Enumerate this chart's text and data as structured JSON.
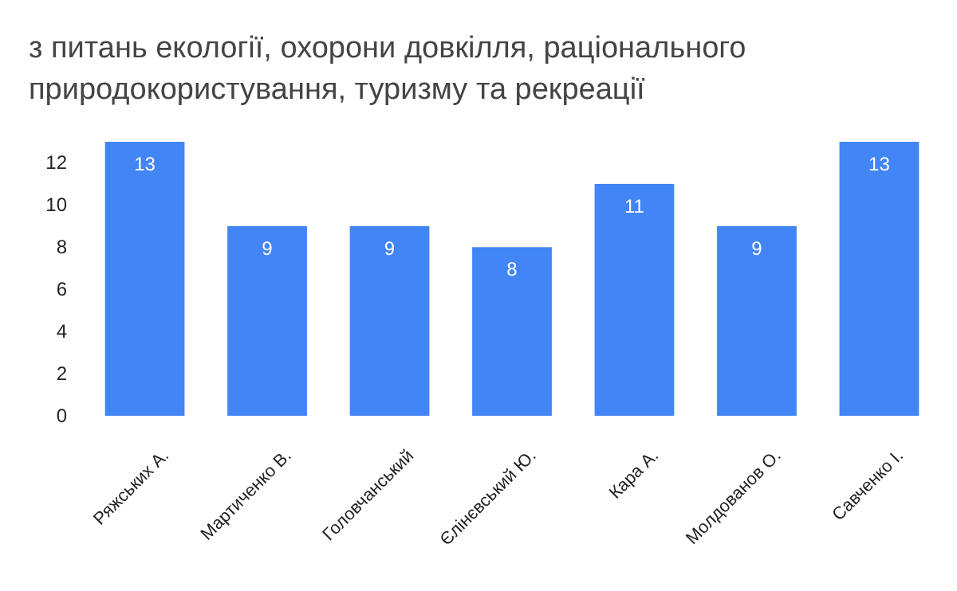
{
  "chart_data": {
    "type": "bar",
    "title": "з питань екології, охорони довкілля, раціонального природокористування, туризму та рекреації",
    "categories": [
      "Ряжських А.",
      "Мартиченко В.",
      "Головчанський",
      "Єлінєвський Ю.",
      "Кара А.",
      "Молдованов О.",
      "Савченко І."
    ],
    "values": [
      13,
      9,
      9,
      8,
      11,
      9,
      13
    ],
    "color": "#4285f4",
    "ylim": [
      0,
      13
    ],
    "yticks": [
      0,
      2,
      4,
      6,
      8,
      10,
      12
    ],
    "data_labels": true
  }
}
